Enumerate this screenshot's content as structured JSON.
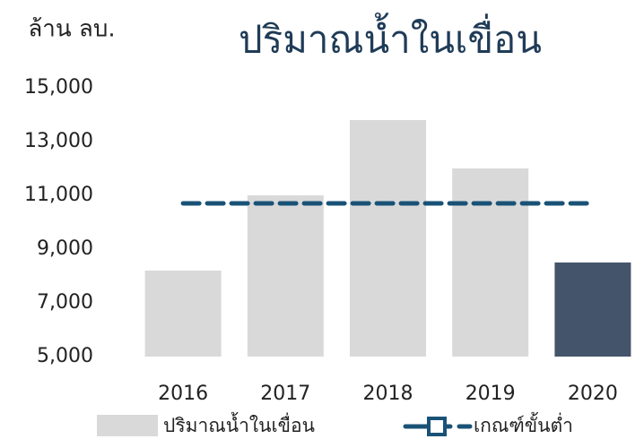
{
  "chart_data": {
    "type": "bar",
    "title": "ปริมาณน้ำในเขื่อน",
    "y_label": "ล้าน ลบ.",
    "categories": [
      "2016",
      "2017",
      "2018",
      "2019",
      "2020"
    ],
    "series": [
      {
        "name": "ปริมาณน้ำในเขื่อน",
        "type": "bar",
        "colors": [
          "#d9d9d9",
          "#d9d9d9",
          "#d9d9d9",
          "#d9d9d9",
          "#44546a"
        ],
        "color": "#d9d9d9",
        "values": [
          8200,
          11000,
          13800,
          12000,
          8500
        ]
      },
      {
        "name": "เกณฑ์ขั้นต่ำ",
        "type": "line",
        "dashed": true,
        "color": "#1a5276",
        "values": [
          10700,
          10700,
          10700,
          10700,
          10700
        ]
      }
    ],
    "ylim": [
      5000,
      15000
    ],
    "yticks": [
      {
        "value": 5000,
        "label": "5,000"
      },
      {
        "value": 7000,
        "label": "7,000"
      },
      {
        "value": 9000,
        "label": "9,000"
      },
      {
        "value": 11000,
        "label": "11,000"
      },
      {
        "value": 13000,
        "label": "13,000"
      },
      {
        "value": 15000,
        "label": "15,000"
      }
    ],
    "grid": false
  }
}
